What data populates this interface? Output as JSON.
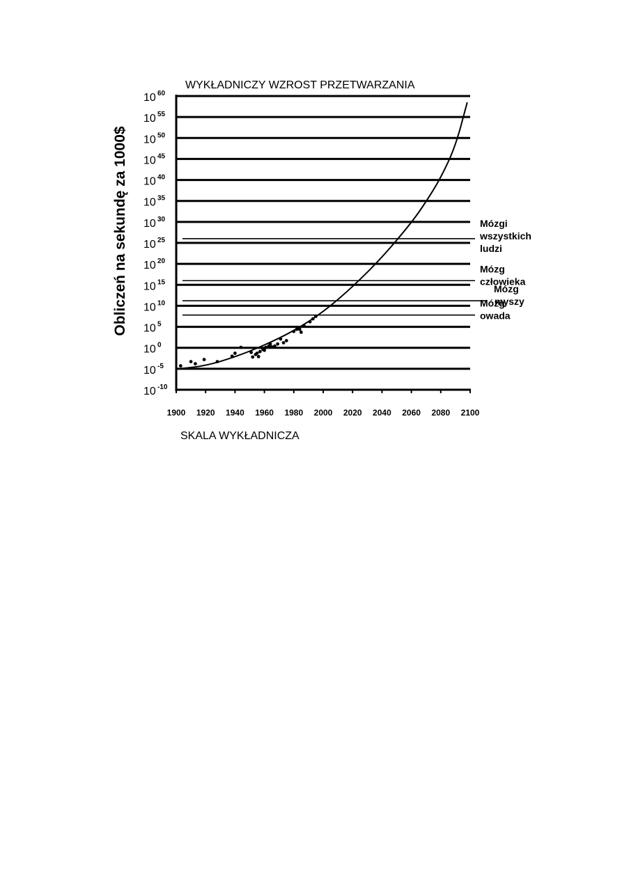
{
  "chart_data": {
    "type": "scatter",
    "title": "WYKŁADNICZY WZROST PRZETWARZANIA",
    "ylabel": "Obliczeń na sekundę za 1000$",
    "xlabel": "SKALA WYKŁADNICZA",
    "y_scale": "log",
    "xlim": [
      1900,
      2100
    ],
    "ylim_exponent": [
      -10,
      60
    ],
    "x_ticks": [
      "1900",
      "1920",
      "1940",
      "1960",
      "1980",
      "2000",
      "2020",
      "2040",
      "2060",
      "2080",
      "2100"
    ],
    "y_ticks": [
      {
        "base": "10",
        "exp": "60"
      },
      {
        "base": "10",
        "exp": "55"
      },
      {
        "base": "10",
        "exp": "50"
      },
      {
        "base": "10",
        "exp": "45"
      },
      {
        "base": "10",
        "exp": "40"
      },
      {
        "base": "10",
        "exp": "35"
      },
      {
        "base": "10",
        "exp": "30"
      },
      {
        "base": "10",
        "exp": "25"
      },
      {
        "base": "10",
        "exp": "20"
      },
      {
        "base": "10",
        "exp": "15"
      },
      {
        "base": "10",
        "exp": "10"
      },
      {
        "base": "10",
        "exp": "5"
      },
      {
        "base": "10",
        "exp": "0"
      },
      {
        "base": "10",
        "exp": "-5"
      },
      {
        "base": "10",
        "exp": "-10"
      }
    ],
    "grid": true,
    "series": [
      {
        "kind": "points",
        "x": [
          1903,
          1910,
          1913,
          1919,
          1928,
          1938,
          1940,
          1944,
          1951,
          1952,
          1954,
          1955,
          1956,
          1957,
          1959,
          1960,
          1961,
          1963,
          1964,
          1965,
          1967,
          1969,
          1971,
          1973,
          1975,
          1980,
          1982,
          1984,
          1985,
          1987,
          1991,
          1993,
          1995
        ],
        "y_exponent": [
          -4.3,
          -3.3,
          -3.8,
          -2.8,
          -3.3,
          -2.0,
          -1.3,
          0.1,
          -1.1,
          -2.2,
          -1.6,
          -1.3,
          -2.1,
          -0.9,
          -0.4,
          -0.6,
          0.1,
          0.4,
          0.9,
          0.2,
          0.4,
          0.9,
          2.1,
          1.2,
          1.7,
          3.9,
          4.4,
          4.4,
          3.7,
          5.2,
          6.2,
          6.9,
          7.5
        ]
      },
      {
        "kind": "curve",
        "x": [
          1902,
          1920,
          1940,
          1960,
          1980,
          2000,
          2020,
          2040,
          2060,
          2070,
          2080,
          2090,
          2098
        ],
        "y_exponent": [
          -5,
          -4.3,
          -2.2,
          0.6,
          4.0,
          8.5,
          14.5,
          21.5,
          29.8,
          34.8,
          40.5,
          48,
          58.5
        ]
      }
    ],
    "reference_levels": [
      {
        "label_lines": [
          "Mózgi",
          "wszystkich",
          "ludzi"
        ],
        "y_exponent": 26
      },
      {
        "label_lines": [
          "Mózg",
          "człowieka"
        ],
        "y_exponent": 16
      },
      {
        "label_lines": [
          "Mózg",
          "myszy"
        ],
        "y_exponent": 11.2
      },
      {
        "label_lines": [
          "Mózg",
          "owada"
        ],
        "y_exponent": 7.8
      }
    ]
  }
}
